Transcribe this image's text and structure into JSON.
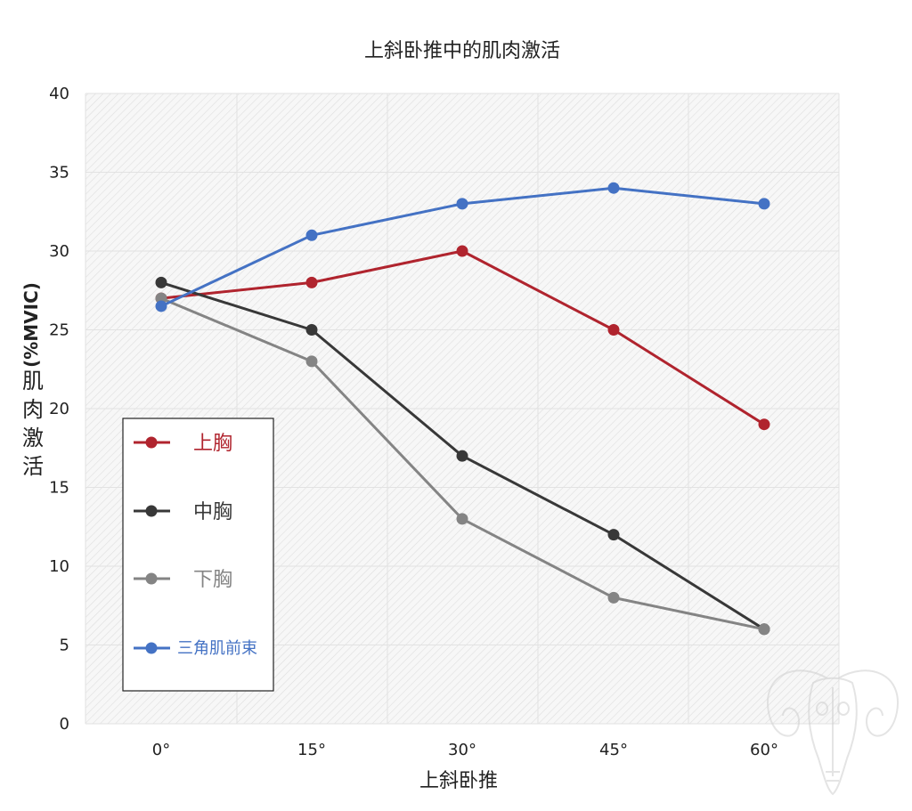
{
  "chart_data": {
    "type": "line",
    "title": "上斜卧推中的肌肉激活",
    "xlabel": "上斜卧推",
    "ylabel_text": "肌肉激活",
    "ylabel_unit": "(%MVIC)",
    "categories": [
      "0°",
      "15°",
      "30°",
      "45°",
      "60°"
    ],
    "ylim": [
      0,
      40
    ],
    "yticks": [
      0,
      5,
      10,
      15,
      20,
      25,
      30,
      35,
      40
    ],
    "grid": true,
    "legend_position": "left",
    "series": [
      {
        "name": "上胸",
        "color": "#b0242e",
        "values": [
          27,
          28,
          30,
          25,
          19
        ]
      },
      {
        "name": "中胸",
        "color": "#383838",
        "values": [
          28,
          25,
          17,
          12,
          6
        ]
      },
      {
        "name": "下胸",
        "color": "#848484",
        "values": [
          27,
          23,
          13,
          8,
          6
        ]
      },
      {
        "name": "三角肌前束",
        "color": "#4472c4",
        "values": [
          26.5,
          31,
          33,
          34,
          33
        ]
      }
    ]
  },
  "watermark": {
    "icon": "ram-skull-icon"
  }
}
